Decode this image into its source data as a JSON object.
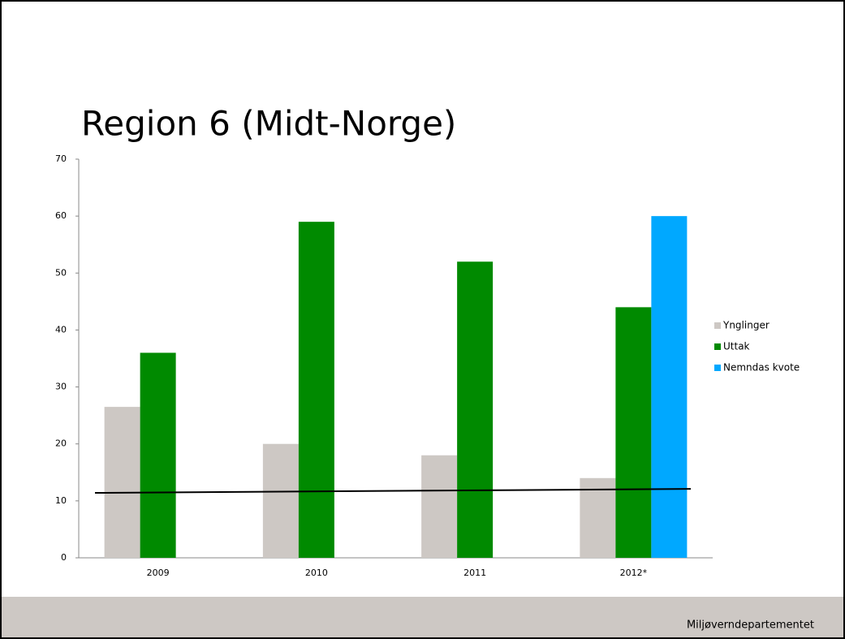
{
  "chart_data": {
    "type": "bar",
    "title": "Region 6 (Midt-Norge)",
    "categories": [
      "2009",
      "2010",
      "2011",
      "2012*"
    ],
    "series": [
      {
        "name": "Ynglinger",
        "color": "#cdc8c4",
        "values": [
          26.5,
          20,
          18,
          14
        ]
      },
      {
        "name": "Uttak",
        "color": "#008a00",
        "values": [
          36,
          59,
          52,
          44
        ]
      },
      {
        "name": "Nemndas kvote",
        "color": "#00a8ff",
        "values": [
          null,
          null,
          null,
          60
        ]
      }
    ],
    "trendline": {
      "color": "#000000",
      "values": [
        11.4,
        12.1
      ]
    },
    "ylim": [
      0,
      70
    ],
    "yticks": [
      0,
      10,
      20,
      30,
      40,
      50,
      60,
      70
    ],
    "legend": "right",
    "footer": "Miljøverndepartementet"
  }
}
